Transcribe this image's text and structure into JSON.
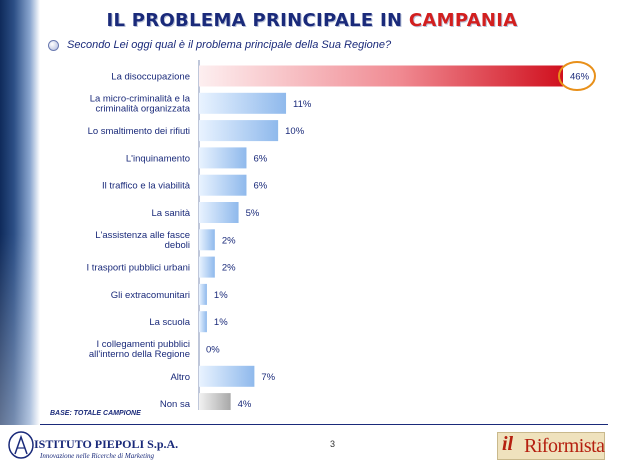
{
  "title": {
    "part1": "IL PROBLEMA PRINCIPALE IN ",
    "part2": "CAMPANIA"
  },
  "question": "Secondo Lei oggi qual è il problema principale della Sua Regione?",
  "base_note": "BASE: TOTALE CAMPIONE",
  "page_number": "3",
  "logo_left": {
    "name": "ISTITUTO PIEPOLI S.p.A.",
    "tagline": "Innovazione nelle Ricerche di Marketing"
  },
  "logo_right": {
    "il": "il",
    "name": "Riformista"
  },
  "colors": {
    "title": "#1a2a7a",
    "title_highlight": "#d21f1f",
    "bar_blue": "#9dc3f0",
    "bar_red": "#d51a2c",
    "bar_grey": "#b5b5b5",
    "highlight_circle": "#e8901a"
  },
  "chart_data": {
    "type": "bar",
    "orientation": "horizontal",
    "categories": [
      [
        "La disoccupazione"
      ],
      [
        "La micro-criminalità e la",
        "criminalità organizzata"
      ],
      [
        "Lo smaltimento dei rifiuti"
      ],
      [
        "L'inquinamento"
      ],
      [
        "Il traffico e la viabilità"
      ],
      [
        "La sanità"
      ],
      [
        "L'assistenza alle fasce",
        "deboli"
      ],
      [
        "I trasporti pubblici urbani"
      ],
      [
        "Gli extracomunitari"
      ],
      [
        "La scuola"
      ],
      [
        "I collegamenti pubblici",
        "all'interno della Regione"
      ],
      [
        "Altro"
      ],
      [
        "Non sa"
      ]
    ],
    "values": [
      46,
      11,
      10,
      6,
      6,
      5,
      2,
      2,
      1,
      1,
      0,
      7,
      4
    ],
    "value_labels": [
      "46%",
      "11%",
      "10%",
      "6%",
      "6%",
      "5%",
      "2%",
      "2%",
      "1%",
      "1%",
      "0%",
      "7%",
      "4%"
    ],
    "bar_styles": [
      "red",
      "blue",
      "blue",
      "blue",
      "blue",
      "blue",
      "blue",
      "blue",
      "blue",
      "blue",
      "blue",
      "blue",
      "grey"
    ],
    "highlighted_index": 0,
    "xlim": [
      0,
      46
    ]
  }
}
